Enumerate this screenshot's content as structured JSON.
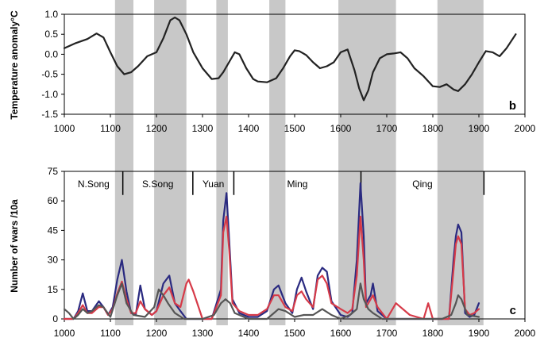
{
  "figure": {
    "shading_periods": [
      [
        1110,
        1150
      ],
      [
        1195,
        1265
      ],
      [
        1330,
        1355
      ],
      [
        1445,
        1480
      ],
      [
        1595,
        1720
      ],
      [
        1810,
        1910
      ]
    ]
  },
  "chart_data": [
    {
      "type": "line",
      "panel_letter": "b",
      "title": "",
      "xlabel": "",
      "ylabel": "Temperature anomaly°C",
      "xlim": [
        1000,
        2000
      ],
      "ylim": [
        -1.5,
        1.0
      ],
      "x_ticks": [
        "1000",
        "1100",
        "1200",
        "1300",
        "1400",
        "1500",
        "1600",
        "1700",
        "1800",
        "1900",
        "2000"
      ],
      "y_ticks": [
        "1.0",
        "0.5",
        "0.0",
        "-0.5",
        "-1.0",
        "-1.5"
      ],
      "y_tick_values": [
        1.0,
        0.5,
        0.0,
        -0.5,
        -1.0,
        -1.5
      ],
      "grid": false,
      "legend": "none",
      "series": [
        {
          "color": "#222222",
          "x": [
            1000,
            1025,
            1050,
            1070,
            1085,
            1100,
            1115,
            1130,
            1145,
            1160,
            1180,
            1200,
            1215,
            1230,
            1240,
            1250,
            1265,
            1280,
            1300,
            1320,
            1335,
            1345,
            1360,
            1370,
            1380,
            1395,
            1410,
            1420,
            1440,
            1460,
            1475,
            1490,
            1500,
            1510,
            1525,
            1540,
            1555,
            1570,
            1585,
            1600,
            1615,
            1630,
            1640,
            1650,
            1660,
            1670,
            1685,
            1700,
            1715,
            1730,
            1745,
            1760,
            1780,
            1800,
            1815,
            1830,
            1845,
            1855,
            1870,
            1885,
            1900,
            1915,
            1930,
            1945,
            1960,
            1980
          ],
          "y": [
            0.15,
            0.28,
            0.38,
            0.52,
            0.42,
            0.05,
            -0.3,
            -0.5,
            -0.45,
            -0.3,
            -0.05,
            0.05,
            0.4,
            0.85,
            0.92,
            0.85,
            0.5,
            0.05,
            -0.35,
            -0.62,
            -0.6,
            -0.45,
            -0.15,
            0.05,
            0.0,
            -0.35,
            -0.62,
            -0.68,
            -0.7,
            -0.6,
            -0.35,
            -0.05,
            0.1,
            0.08,
            -0.02,
            -0.2,
            -0.35,
            -0.3,
            -0.2,
            0.05,
            0.12,
            -0.4,
            -0.85,
            -1.15,
            -0.9,
            -0.45,
            -0.1,
            0.0,
            0.02,
            0.05,
            -0.1,
            -0.35,
            -0.55,
            -0.8,
            -0.82,
            -0.75,
            -0.88,
            -0.92,
            -0.75,
            -0.5,
            -0.2,
            0.08,
            0.05,
            -0.05,
            0.15,
            0.5
          ]
        }
      ]
    },
    {
      "type": "line",
      "panel_letter": "c",
      "title": "",
      "xlabel": "",
      "ylabel": "Number of wars /10a",
      "xlim": [
        1000,
        2000
      ],
      "ylim": [
        0,
        75
      ],
      "x_ticks": [
        "1000",
        "1100",
        "1200",
        "1300",
        "1400",
        "1500",
        "1600",
        "1700",
        "1800",
        "1900",
        "2000"
      ],
      "y_ticks": [
        "75",
        "60",
        "45",
        "30",
        "15",
        "0"
      ],
      "y_tick_values": [
        75,
        60,
        45,
        30,
        15,
        0
      ],
      "grid": false,
      "legend": "none",
      "dynasties": [
        {
          "name": "N.Song",
          "start": 1000,
          "end": 1127
        },
        {
          "name": "S.Song",
          "start": 1127,
          "end": 1279
        },
        {
          "name": "Yuan",
          "start": 1279,
          "end": 1368
        },
        {
          "name": "Ming",
          "start": 1368,
          "end": 1644
        },
        {
          "name": "Qing",
          "start": 1644,
          "end": 1911
        }
      ],
      "series": [
        {
          "color": "#2a2a80",
          "x": [
            1000,
            1020,
            1030,
            1040,
            1050,
            1060,
            1075,
            1085,
            1095,
            1105,
            1115,
            1125,
            1135,
            1145,
            1155,
            1165,
            1175,
            1190,
            1200,
            1215,
            1228,
            1240,
            1252,
            1265,
            1280,
            1300,
            1320,
            1340,
            1345,
            1352,
            1358,
            1365,
            1380,
            1400,
            1420,
            1440,
            1455,
            1465,
            1480,
            1495,
            1505,
            1515,
            1525,
            1540,
            1550,
            1560,
            1570,
            1580,
            1600,
            1615,
            1625,
            1635,
            1643,
            1650,
            1655,
            1665,
            1670,
            1680,
            1700,
            1720,
            1750,
            1780,
            1800,
            1820,
            1835,
            1845,
            1850,
            1855,
            1862,
            1870,
            1880,
            1890,
            1900
          ],
          "y": [
            0,
            0,
            4,
            13,
            4,
            4,
            9,
            6,
            2,
            6,
            20,
            30,
            14,
            3,
            2,
            17,
            5,
            2,
            4,
            18,
            22,
            8,
            4,
            0,
            0,
            0,
            0,
            15,
            50,
            64,
            40,
            10,
            3,
            1,
            1,
            4,
            15,
            17,
            8,
            3,
            15,
            21,
            14,
            5,
            22,
            26,
            24,
            9,
            2,
            1,
            3,
            30,
            69,
            42,
            8,
            12,
            18,
            4,
            0,
            0,
            0,
            0,
            0,
            0,
            0,
            30,
            42,
            48,
            44,
            3,
            1,
            2,
            8
          ]
        },
        {
          "color": "#d63a48",
          "x": [
            1000,
            1020,
            1030,
            1040,
            1050,
            1060,
            1075,
            1085,
            1095,
            1105,
            1115,
            1125,
            1135,
            1145,
            1155,
            1165,
            1175,
            1190,
            1200,
            1215,
            1228,
            1240,
            1252,
            1265,
            1270,
            1280,
            1300,
            1320,
            1340,
            1345,
            1352,
            1358,
            1365,
            1380,
            1400,
            1420,
            1440,
            1455,
            1465,
            1480,
            1495,
            1505,
            1515,
            1525,
            1540,
            1550,
            1560,
            1570,
            1580,
            1600,
            1615,
            1625,
            1635,
            1643,
            1650,
            1655,
            1665,
            1670,
            1680,
            1700,
            1720,
            1750,
            1780,
            1790,
            1800,
            1820,
            1835,
            1845,
            1850,
            1855,
            1862,
            1870,
            1880,
            1890,
            1900
          ],
          "y": [
            0,
            0,
            3,
            7,
            3,
            3,
            6,
            6,
            2,
            5,
            13,
            19,
            10,
            3,
            3,
            9,
            5,
            2,
            4,
            12,
            16,
            8,
            6,
            18,
            20,
            14,
            0,
            0,
            12,
            44,
            52,
            35,
            8,
            4,
            2,
            2,
            5,
            12,
            12,
            6,
            4,
            12,
            14,
            10,
            6,
            20,
            22,
            18,
            8,
            5,
            3,
            5,
            22,
            52,
            30,
            6,
            10,
            12,
            6,
            0,
            8,
            2,
            0,
            8,
            0,
            0,
            0,
            25,
            38,
            42,
            38,
            5,
            2,
            3,
            5
          ]
        },
        {
          "color": "#555555",
          "x": [
            1000,
            1010,
            1020,
            1030,
            1040,
            1050,
            1060,
            1075,
            1085,
            1100,
            1115,
            1125,
            1135,
            1150,
            1175,
            1195,
            1205,
            1215,
            1225,
            1240,
            1260,
            1280,
            1300,
            1325,
            1340,
            1350,
            1360,
            1370,
            1400,
            1420,
            1440,
            1455,
            1465,
            1480,
            1500,
            1520,
            1540,
            1560,
            1580,
            1600,
            1620,
            1635,
            1643,
            1650,
            1660,
            1670,
            1690,
            1700,
            1720,
            1750,
            1780,
            1800,
            1820,
            1840,
            1850,
            1855,
            1862,
            1875,
            1900
          ],
          "y": [
            5,
            3,
            0,
            2,
            5,
            3,
            4,
            7,
            6,
            1,
            12,
            18,
            8,
            2,
            1,
            6,
            15,
            12,
            8,
            3,
            0,
            0,
            0,
            2,
            8,
            10,
            8,
            3,
            0,
            0,
            0,
            3,
            5,
            4,
            1,
            2,
            2,
            5,
            2,
            0,
            2,
            5,
            18,
            10,
            5,
            3,
            0,
            0,
            0,
            0,
            0,
            0,
            0,
            2,
            8,
            12,
            10,
            2,
            1
          ]
        }
      ]
    }
  ]
}
